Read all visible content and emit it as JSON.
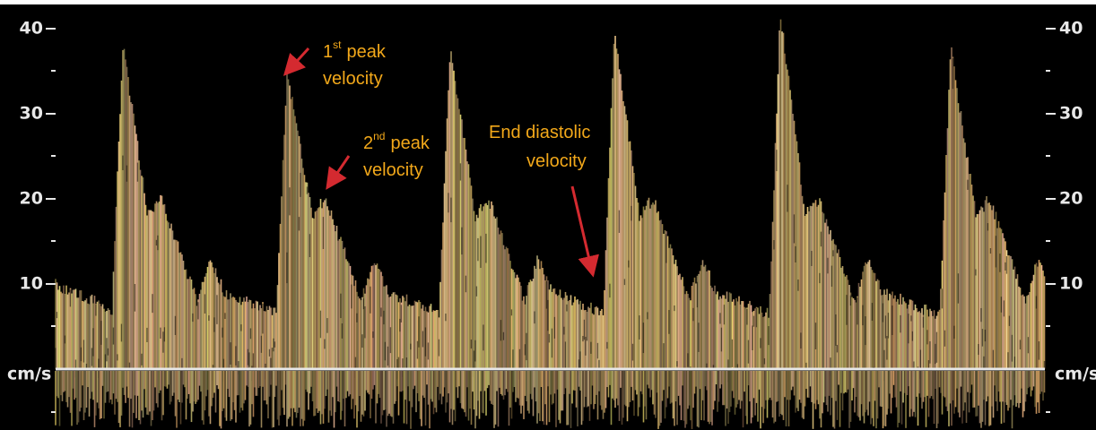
{
  "axis_left": {
    "labels": [
      "40",
      "30",
      "20",
      "10"
    ],
    "unit": "cm/s"
  },
  "axis_right": {
    "labels": [
      "40",
      "30",
      "20",
      "10"
    ],
    "unit": "cm/s"
  },
  "annotations": [
    {
      "number": "1",
      "suffix": "st",
      "word": "peak",
      "line2": "velocity"
    },
    {
      "number": "2",
      "suffix": "nd",
      "word": "peak",
      "line2": "velocity"
    },
    {
      "line1": "End diastolic",
      "line2": "velocity"
    }
  ]
}
